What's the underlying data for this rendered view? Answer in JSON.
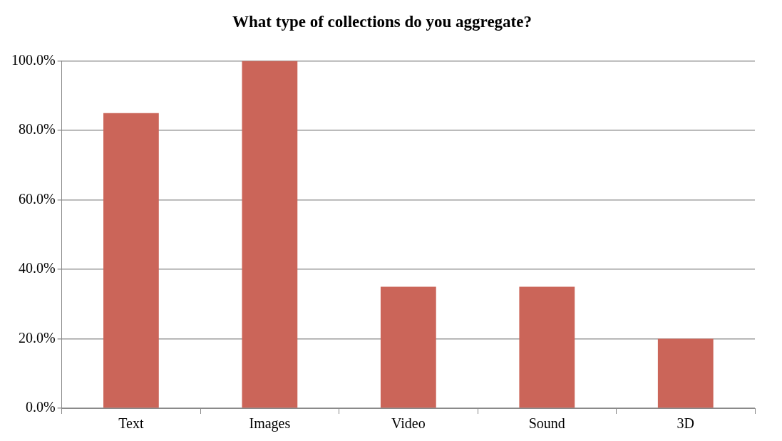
{
  "chart_data": {
    "type": "bar",
    "title": "What type of collections do you aggregate?",
    "categories": [
      "Text",
      "Images",
      "Video",
      "Sound",
      "3D"
    ],
    "values": [
      85,
      100,
      35,
      35,
      20
    ],
    "color": "#cb6559",
    "ylim": [
      0,
      100
    ],
    "yticks": [
      {
        "value": 0,
        "label": "0.0%"
      },
      {
        "value": 20,
        "label": "20.0%"
      },
      {
        "value": 40,
        "label": "40.0%"
      },
      {
        "value": 60,
        "label": "60.0%"
      },
      {
        "value": 80,
        "label": "80.0%"
      },
      {
        "value": 100,
        "label": "100.0%"
      }
    ],
    "grid": "y",
    "legend": false
  }
}
